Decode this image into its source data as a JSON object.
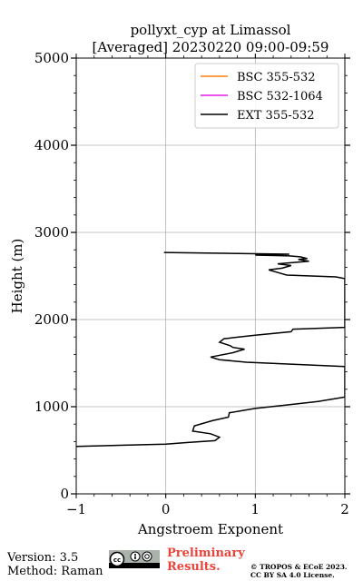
{
  "chart_data": {
    "type": "line",
    "title": "pollyxt_cyp at Limassol",
    "subtitle": "[Averaged] 20230220 09:00-09:59",
    "xlabel": "Angstroem Exponent",
    "ylabel": "Height (m)",
    "xlim": [
      -1,
      2
    ],
    "ylim": [
      0,
      5000
    ],
    "xticks": [
      "−1",
      "0",
      "1",
      "2"
    ],
    "yticks": [
      "0",
      "1000",
      "2000",
      "3000",
      "4000",
      "5000"
    ],
    "grid": true,
    "legend_position": "top-right",
    "series": [
      {
        "name": "BSC 355-532",
        "color": "#ff7f0e",
        "points": []
      },
      {
        "name": "BSC 532-1064",
        "color": "#e31ce3",
        "points": []
      },
      {
        "name": "EXT 355-532",
        "color": "#000000",
        "points": [
          [
            -1.0,
            545
          ],
          [
            0.0,
            570
          ],
          [
            0.25,
            590
          ],
          [
            0.55,
            610
          ],
          [
            0.6,
            650
          ],
          [
            0.5,
            690
          ],
          [
            0.3,
            720
          ],
          [
            0.32,
            780
          ],
          [
            0.52,
            840
          ],
          [
            0.7,
            880
          ],
          [
            0.71,
            930
          ],
          [
            1.0,
            980
          ],
          [
            1.35,
            1020
          ],
          [
            1.7,
            1060
          ],
          [
            2.0,
            1110
          ],
          [
            2.0,
            1460
          ],
          [
            0.9,
            1510
          ],
          [
            0.6,
            1540
          ],
          [
            0.5,
            1570
          ],
          [
            0.75,
            1620
          ],
          [
            0.88,
            1660
          ],
          [
            0.75,
            1680
          ],
          [
            0.72,
            1700
          ],
          [
            0.6,
            1740
          ],
          [
            0.65,
            1780
          ],
          [
            1.0,
            1820
          ],
          [
            1.4,
            1860
          ],
          [
            1.42,
            1890
          ],
          [
            2.0,
            1910
          ],
          [
            2.0,
            2470
          ],
          [
            1.9,
            2490
          ],
          [
            1.35,
            2510
          ],
          [
            1.15,
            2570
          ],
          [
            1.3,
            2590
          ],
          [
            1.4,
            2620
          ],
          [
            1.25,
            2640
          ],
          [
            1.6,
            2670
          ],
          [
            1.48,
            2690
          ],
          [
            1.58,
            2700
          ],
          [
            1.5,
            2720
          ],
          [
            1.38,
            2730
          ],
          [
            1.0,
            2740
          ],
          [
            1.38,
            2750
          ],
          [
            -0.02,
            2770
          ]
        ]
      }
    ]
  },
  "footer": {
    "version": "Version: 3.5",
    "method": "Method: Raman",
    "preliminary_line1": "Preliminary",
    "preliminary_line2": "Results.",
    "copyright_line1": "© TROPOS & ECoE 2023.",
    "copyright_line2": "CC BY SA 4.0 License."
  }
}
